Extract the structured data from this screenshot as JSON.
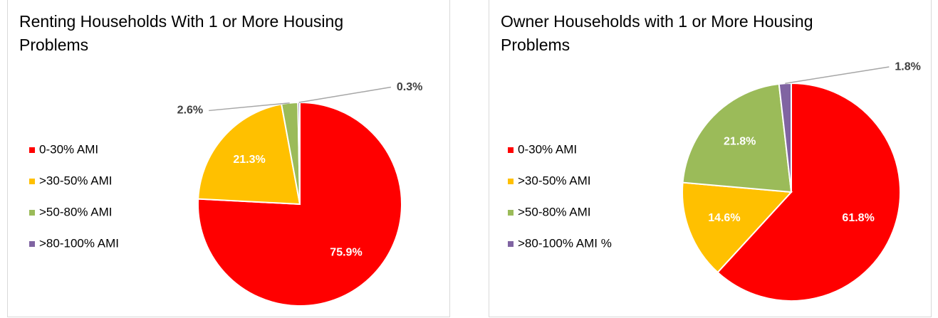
{
  "chart_data": [
    {
      "type": "pie",
      "title": "Renting Households With 1 or More Housing Problems",
      "categories": [
        "0-30% AMI",
        ">30-50% AMI",
        ">50-80% AMI",
        ">80-100% AMI"
      ],
      "values": [
        75.9,
        21.3,
        2.6,
        0.3
      ],
      "value_labels": [
        "75.9%",
        "21.3%",
        "2.6%",
        "0.3%"
      ],
      "colors": [
        "#ff0000",
        "#ffc000",
        "#9bbb59",
        "#8064a2"
      ],
      "legend": "left"
    },
    {
      "type": "pie",
      "title": "Owner Households with 1 or More Housing Problems",
      "categories": [
        "0-30% AMI",
        ">30-50% AMI",
        ">50-80% AMI",
        ">80-100% AMI %"
      ],
      "values": [
        61.8,
        14.6,
        21.8,
        1.8
      ],
      "value_labels": [
        "61.8%",
        "14.6%",
        "21.8%",
        "1.8%"
      ],
      "colors": [
        "#ff0000",
        "#ffc000",
        "#9bbb59",
        "#8064a2"
      ],
      "legend": "left"
    }
  ]
}
